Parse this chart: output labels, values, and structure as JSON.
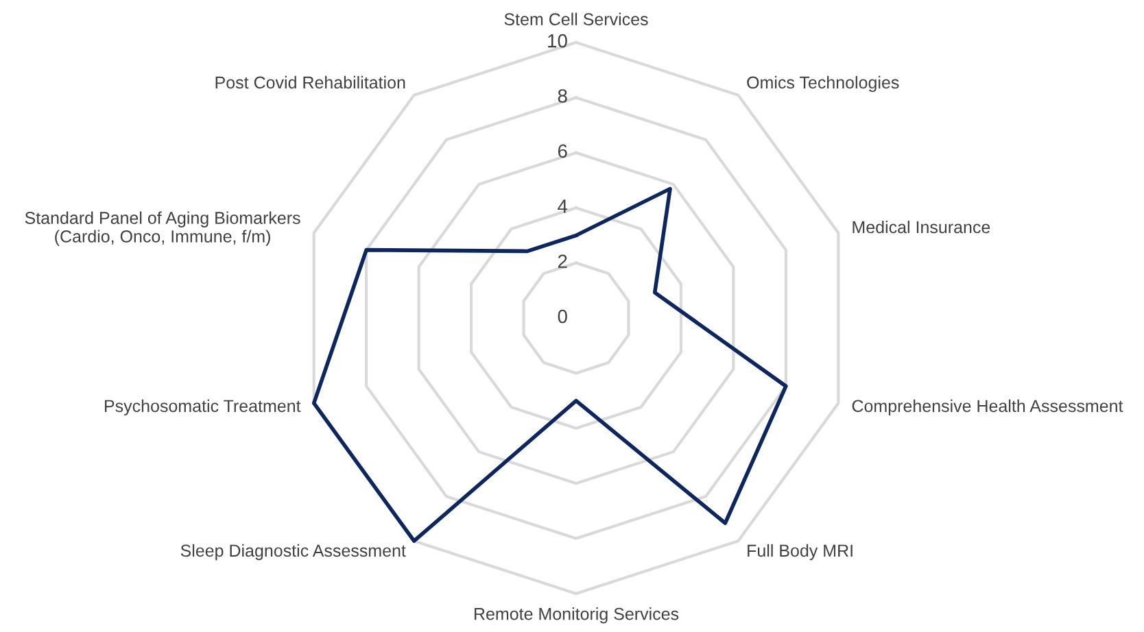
{
  "chart_data": {
    "type": "radar",
    "categories": [
      "Stem Cell Services",
      "Omics Technologies",
      "Medical Insurance",
      "Comprehensive Health Assessment",
      "Full Body MRI",
      "Remote Monitorig Services",
      "Sleep Diagnostic Assessment",
      "Psychosomatic Treatment",
      "Standard Panel of Aging Biomarkers\n(Cardio, Onco, Immune, f/m)",
      "Post Covid Rehabilitation"
    ],
    "series": [
      {
        "color": "#0e2660",
        "values": [
          3,
          5.8,
          3,
          8,
          9.2,
          3,
          10,
          10,
          8,
          3
        ]
      }
    ],
    "ylim": [
      0,
      10
    ],
    "yticks": [
      0,
      2,
      4,
      6,
      8,
      10
    ],
    "grid": true,
    "line_style": "solid",
    "marker": "none"
  }
}
